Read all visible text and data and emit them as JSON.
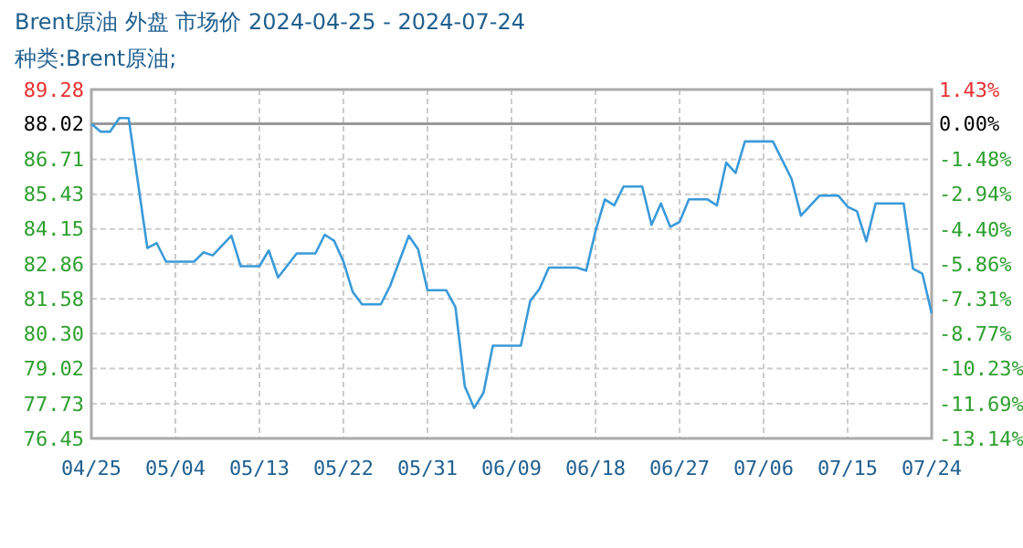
{
  "chart_data": {
    "type": "line",
    "title": "Brent原油 外盘 市场价 2024-04-25 - 2024-07-24",
    "subtitle": "种类:Brent原油;",
    "x": [
      "2024-04-25",
      "2024-04-26",
      "2024-04-27",
      "2024-04-28",
      "2024-04-29",
      "2024-05-01",
      "2024-05-02",
      "2024-05-03",
      "2024-05-06",
      "2024-05-07",
      "2024-05-08",
      "2024-05-10",
      "2024-05-11",
      "2024-05-13",
      "2024-05-14",
      "2024-05-15",
      "2024-05-17",
      "2024-05-19",
      "2024-05-20",
      "2024-05-21",
      "2024-05-22",
      "2024-05-23",
      "2024-05-24",
      "2024-05-26",
      "2024-05-27",
      "2024-05-29",
      "2024-05-30",
      "2024-05-31",
      "2024-06-02",
      "2024-06-03",
      "2024-06-04",
      "2024-06-05",
      "2024-06-06",
      "2024-06-07",
      "2024-06-10",
      "2024-06-11",
      "2024-06-12",
      "2024-06-13",
      "2024-06-16",
      "2024-06-17",
      "2024-06-18",
      "2024-06-19",
      "2024-06-20",
      "2024-06-21",
      "2024-06-23",
      "2024-06-24",
      "2024-06-25",
      "2024-06-26",
      "2024-06-27",
      "2024-06-28",
      "2024-06-30",
      "2024-07-01",
      "2024-07-02",
      "2024-07-03",
      "2024-07-04",
      "2024-07-07",
      "2024-07-09",
      "2024-07-10",
      "2024-07-12",
      "2024-07-14",
      "2024-07-15",
      "2024-07-16",
      "2024-07-17",
      "2024-07-18",
      "2024-07-21",
      "2024-07-22",
      "2024-07-23",
      "2024-07-24"
    ],
    "series": [
      {
        "color": "#3a9ad9",
        "values": [
          88.02,
          87.73,
          87.73,
          88.23,
          88.23,
          83.45,
          83.63,
          82.95,
          82.95,
          83.29,
          83.18,
          83.9,
          82.78,
          82.78,
          83.36,
          82.37,
          83.25,
          83.25,
          83.94,
          83.72,
          82.95,
          81.83,
          81.38,
          81.38,
          82.06,
          83.9,
          83.4,
          81.9,
          81.9,
          81.27,
          78.36,
          77.57,
          78.13,
          79.86,
          79.86,
          81.5,
          81.95,
          82.73,
          82.73,
          82.62,
          84.08,
          85.24,
          85.02,
          85.71,
          85.71,
          84.3,
          85.09,
          84.23,
          84.41,
          85.24,
          85.24,
          85.02,
          86.59,
          86.21,
          87.37,
          87.37,
          85.99,
          84.64,
          85.38,
          85.38,
          84.97,
          84.8,
          83.7,
          85.09,
          85.09,
          82.69,
          82.51,
          81.05
        ]
      }
    ],
    "xlim": [
      "2024-04-25",
      "2024-07-24"
    ],
    "xticks": [
      {
        "value": "2024-04-25",
        "label": "04/25"
      },
      {
        "value": "2024-05-04",
        "label": "05/04"
      },
      {
        "value": "2024-05-13",
        "label": "05/13"
      },
      {
        "value": "2024-05-22",
        "label": "05/22"
      },
      {
        "value": "2024-05-31",
        "label": "05/31"
      },
      {
        "value": "2024-06-09",
        "label": "06/09"
      },
      {
        "value": "2024-06-18",
        "label": "06/18"
      },
      {
        "value": "2024-06-27",
        "label": "06/27"
      },
      {
        "value": "2024-07-06",
        "label": "07/06"
      },
      {
        "value": "2024-07-15",
        "label": "07/15"
      },
      {
        "value": "2024-07-24",
        "label": "07/24"
      }
    ],
    "ylim": [
      76.45,
      89.28
    ],
    "yticks": [
      76.45,
      77.73,
      79.02,
      {
        "value": 80.3,
        "label": "80.30"
      },
      81.58,
      82.86,
      84.15,
      85.43,
      86.71,
      88.02,
      89.28
    ],
    "y2lim": [
      -13.14,
      1.43
    ],
    "y2ticks": [
      {
        "value": -13.14,
        "label": "-13.14%"
      },
      {
        "value": -11.69,
        "label": "-11.69%"
      },
      {
        "value": -10.23,
        "label": "-10.23%"
      },
      {
        "value": -8.77,
        "label": "-8.77%"
      },
      {
        "value": -7.31,
        "label": "-7.31%"
      },
      {
        "value": -5.86,
        "label": "-5.86%"
      },
      {
        "value": -4.4,
        "label": "-4.40%"
      },
      {
        "value": -2.94,
        "label": "-2.94%"
      },
      {
        "value": -1.48,
        "label": "-1.48%"
      },
      {
        "value": 0,
        "label": "0.00%"
      },
      {
        "value": 1.43,
        "label": "1.43%"
      }
    ],
    "ref_lines": [
      {
        "axis": "y",
        "value": 88.02,
        "color": "#999999"
      }
    ],
    "grid": true,
    "marker": "none",
    "line_style": "solid"
  }
}
